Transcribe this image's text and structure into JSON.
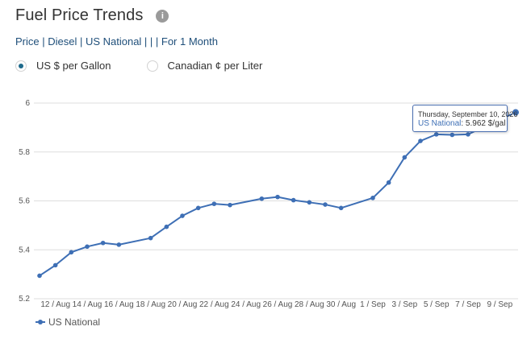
{
  "header": {
    "title": "Fuel Price Trends",
    "info_icon": "info-icon",
    "breadcrumb": "Price | Diesel | US National | | | For 1 Month"
  },
  "units": {
    "options": [
      {
        "label": "US $ per Gallon",
        "selected": true
      },
      {
        "label": "Canadian ¢ per Liter",
        "selected": false
      }
    ]
  },
  "colors": {
    "series": "#3e6fb5",
    "grid": "#dddddd",
    "accent": "#1f6a8c"
  },
  "tooltip": {
    "date": "Thursday, September 10, 2026",
    "series": "US National",
    "separator": ": ",
    "value": "5.962 $/gal"
  },
  "chart_data": {
    "type": "line",
    "title": "",
    "xlabel": "",
    "ylabel": "",
    "ylim": [
      5.2,
      6.0
    ],
    "yticks": [
      5.2,
      5.4,
      5.6,
      5.8,
      6
    ],
    "ytick_labels": [
      "5.2",
      "5.4",
      "5.6",
      "5.8",
      "6"
    ],
    "grid": true,
    "legend_position": "bottom-left",
    "x_start": "11 / Aug",
    "x_end": "10 / Sep",
    "xtick_labels": [
      "12 / Aug",
      "14 / Aug",
      "16 / Aug",
      "18 / Aug",
      "20 / Aug",
      "22 / Aug",
      "24 / Aug",
      "26 / Aug",
      "28 / Aug",
      "30 / Aug",
      "1 / Sep",
      "3 / Sep",
      "5 / Sep",
      "7 / Sep",
      "9 / Sep"
    ],
    "series": [
      {
        "name": "US National",
        "points": [
          {
            "x": "11 / Aug",
            "y": 5.294
          },
          {
            "x": "12 / Aug",
            "y": 5.337
          },
          {
            "x": "13 / Aug",
            "y": 5.39
          },
          {
            "x": "14 / Aug",
            "y": 5.413
          },
          {
            "x": "15 / Aug",
            "y": 5.428
          },
          {
            "x": "16 / Aug",
            "y": 5.421
          },
          {
            "x": "18 / Aug",
            "y": 5.448
          },
          {
            "x": "19 / Aug",
            "y": 5.494
          },
          {
            "x": "20 / Aug",
            "y": 5.539
          },
          {
            "x": "21 / Aug",
            "y": 5.571
          },
          {
            "x": "22 / Aug",
            "y": 5.588
          },
          {
            "x": "23 / Aug",
            "y": 5.583
          },
          {
            "x": "25 / Aug",
            "y": 5.609
          },
          {
            "x": "26 / Aug",
            "y": 5.616
          },
          {
            "x": "27 / Aug",
            "y": 5.603
          },
          {
            "x": "28 / Aug",
            "y": 5.594
          },
          {
            "x": "29 / Aug",
            "y": 5.585
          },
          {
            "x": "30 / Aug",
            "y": 5.571
          },
          {
            "x": "1 / Sep",
            "y": 5.612
          },
          {
            "x": "2 / Sep",
            "y": 5.675
          },
          {
            "x": "3 / Sep",
            "y": 5.778
          },
          {
            "x": "4 / Sep",
            "y": 5.845
          },
          {
            "x": "5 / Sep",
            "y": 5.872
          },
          {
            "x": "6 / Sep",
            "y": 5.87
          },
          {
            "x": "7 / Sep",
            "y": 5.872
          },
          {
            "x": "10 / Sep",
            "y": 5.962
          }
        ]
      }
    ]
  }
}
